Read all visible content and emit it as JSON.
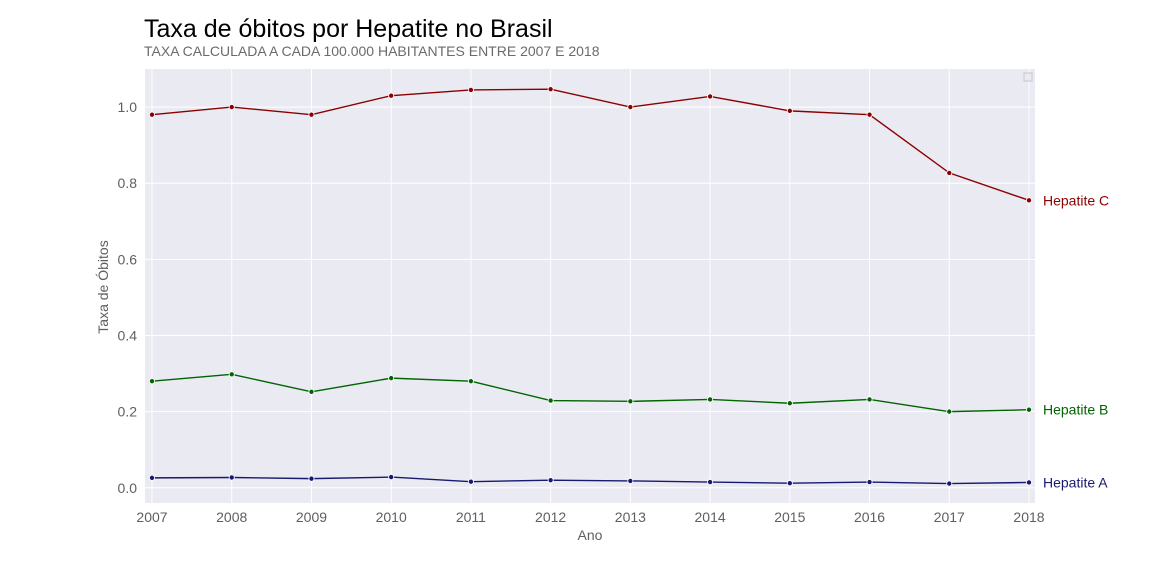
{
  "chart_data": {
    "type": "line",
    "title": "Taxa de óbitos por Hepatite no Brasil",
    "subtitle": "TAXA CALCULADA A CADA 100.000 HABITANTES ENTRE 2007 E 2018",
    "xlabel": "Ano",
    "ylabel": "Taxa de Óbitos",
    "x": [
      "2007",
      "2008",
      "2009",
      "2010",
      "2011",
      "2012",
      "2013",
      "2014",
      "2015",
      "2016",
      "2017",
      "2018"
    ],
    "xlim": [
      2007,
      2018
    ],
    "ylim": [
      -0.04,
      1.1
    ],
    "yticks": [
      0.0,
      0.2,
      0.4,
      0.6,
      0.8,
      1.0
    ],
    "ytick_labels": [
      "0.0",
      "0.2",
      "0.4",
      "0.6",
      "0.8",
      "1.0"
    ],
    "grid": true,
    "legend": "top-right (empty)",
    "background_color": "#EAEAF2",
    "series": [
      {
        "name": "Hepatite C",
        "color": "#8B0000",
        "values": [
          0.98,
          1.0,
          0.98,
          1.03,
          1.045,
          1.047,
          1.0,
          1.028,
          0.99,
          0.98,
          0.827,
          0.755
        ]
      },
      {
        "name": "Hepatite B",
        "color": "#006400",
        "values": [
          0.28,
          0.298,
          0.252,
          0.288,
          0.28,
          0.229,
          0.227,
          0.232,
          0.222,
          0.232,
          0.2,
          0.205
        ]
      },
      {
        "name": "Hepatite A",
        "color": "#191970",
        "values": [
          0.026,
          0.027,
          0.024,
          0.028,
          0.016,
          0.02,
          0.018,
          0.015,
          0.012,
          0.015,
          0.011,
          0.014
        ]
      }
    ]
  }
}
